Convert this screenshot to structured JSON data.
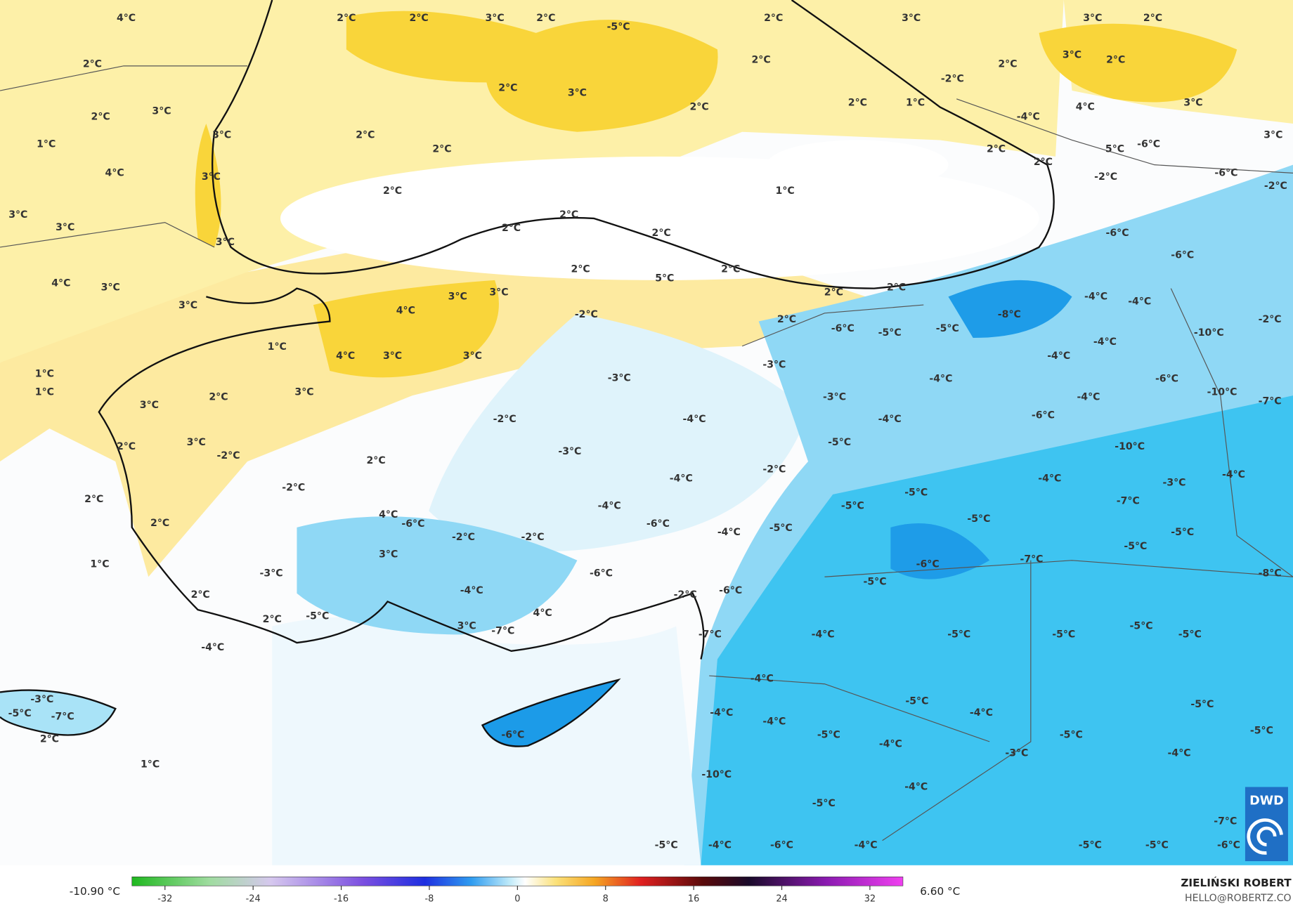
{
  "map": {
    "labels": [
      "4°C",
      "2°C",
      "2°C",
      "3°C",
      "2°C",
      "-5°C",
      "2°C",
      "3°C",
      "3°C",
      "2°C",
      "2°C",
      "2°C",
      "3°C",
      "2°C",
      "2°C",
      "-2°C",
      "2°C",
      "3°C",
      "2°C",
      "2°C",
      "1°C",
      "3°C",
      "4°C",
      "3°C",
      "2°C",
      "-4°C",
      "3°C",
      "2°C",
      "1°C",
      "2°C",
      "2°C",
      "5°C",
      "-6°C",
      "3°C",
      "2°C",
      "4°C",
      "3°C",
      "-2°C",
      "-6°C",
      "2°C",
      "1°C",
      "-2°C",
      "3°C",
      "3°C",
      "2°C",
      "2°C",
      "2°C",
      "-6°C",
      "3°C",
      "-6°C",
      "2°C",
      "2°C",
      "5°C",
      "4°C",
      "3°C",
      "2°C",
      "2°C",
      "3°C",
      "3°C",
      "-4°C",
      "-4°C",
      "3°C",
      "4°C",
      "-2°C",
      "-8°C",
      "2°C",
      "-2°C",
      "-6°C",
      "-5°C",
      "-5°C",
      "-4°C",
      "-10°C",
      "1°C",
      "4°C",
      "3°C",
      "3°C",
      "-4°C",
      "-3°C",
      "1°C",
      "-3°C",
      "-4°C",
      "-6°C",
      "1°C",
      "3°C",
      "2°C",
      "-3°C",
      "-4°C",
      "-10°C",
      "-7°C",
      "3°C",
      "-4°C",
      "-2°C",
      "-4°C",
      "-6°C",
      "-5°C",
      "2°C",
      "3°C",
      "-10°C",
      "-3°C",
      "-2°C",
      "2°C",
      "-2°C",
      "-4°C",
      "-4°C",
      "-4°C",
      "-3°C",
      "-2°C",
      "-5°C",
      "-5°C",
      "2°C",
      "-4°C",
      "4°C",
      "-6°C",
      "-7°C",
      "-6°C",
      "-5°C",
      "2°C",
      "-5°C",
      "-4°C",
      "-5°C",
      "-2°C",
      "-2°C",
      "-5°C",
      "3°C",
      "-7°C",
      "1°C",
      "-6°C",
      "-6°C",
      "-3°C",
      "-8°C",
      "-5°C",
      "-4°C",
      "-6°C",
      "-2°C",
      "2°C",
      "4°C",
      "2°C",
      "-5°C",
      "-5°C",
      "3°C",
      "-7°C",
      "-7°C",
      "-4°C",
      "-5°C",
      "-5°C",
      "-5°C",
      "-4°C",
      "-4°C",
      "-3°C",
      "-5°C",
      "-4°C",
      "-5°C",
      "-5°C",
      "-7°C",
      "-4°C",
      "-6°C",
      "-4°C",
      "-5°C",
      "-5°C",
      "-5°C",
      "2°C",
      "-4°C",
      "-3°C",
      "-4°C",
      "1°C",
      "-10°C",
      "-4°C",
      "-5°C",
      "-7°C",
      "-5°C",
      "-4°C",
      "-6°C",
      "-4°C",
      "-5°C",
      "-5°C",
      "-6°C"
    ]
  },
  "colorbar": {
    "min_label": "-10.90 °C",
    "max_label": "6.60 °C",
    "range": [
      -35,
      35
    ],
    "ticks": [
      -32,
      -24,
      -16,
      -8,
      0,
      8,
      16,
      24,
      32
    ]
  },
  "credit": {
    "name": "ZIELIŃSKI ROBERT",
    "email": "HELLO@ROBERTZ.CO",
    "logo": "DWD"
  }
}
